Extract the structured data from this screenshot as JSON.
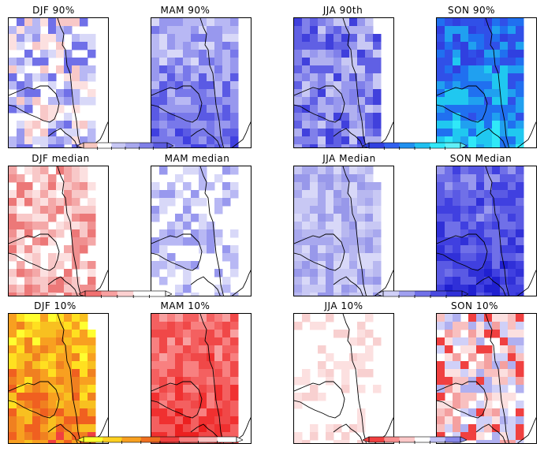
{
  "figure": {
    "panels": [
      {
        "title": "DJF 90%",
        "scheme": "djf90",
        "coast": "west"
      },
      {
        "title": "MAM 90%",
        "scheme": "mam90",
        "coast": "east"
      },
      {
        "title": "JJA 90th",
        "scheme": "jja90",
        "coast": "west"
      },
      {
        "title": "SON 90%",
        "scheme": "son90",
        "coast": "east"
      },
      {
        "title": "DJF median",
        "scheme": "djfmed",
        "coast": "west"
      },
      {
        "title": "MAM median",
        "scheme": "mammed",
        "coast": "east"
      },
      {
        "title": "JJA Median",
        "scheme": "jjamed",
        "coast": "west"
      },
      {
        "title": "SON Median",
        "scheme": "sonmed",
        "coast": "east"
      },
      {
        "title": "DJF 10%",
        "scheme": "djf10",
        "coast": "west"
      },
      {
        "title": "MAM 10%",
        "scheme": "mam10",
        "coast": "east"
      },
      {
        "title": "JJA 10%",
        "scheme": "jja10",
        "coast": "west"
      },
      {
        "title": "SON 10%",
        "scheme": "son10",
        "coast": "east"
      }
    ],
    "colorbars": [
      {
        "name": "row1-left",
        "colors": [
          "#f8c8c0",
          "#ffffff",
          "#c8c8f4",
          "#a8a8ee",
          "#8080e8",
          "#5a5ae0"
        ]
      },
      {
        "name": "row1-right",
        "colors": [
          "#3040e0",
          "#3060f0",
          "#2090f0",
          "#20c0f0",
          "#30e8f8",
          "#60f0f8"
        ]
      },
      {
        "name": "row2-left",
        "colors": [
          "#f07070",
          "#f8a0a0",
          "#fcd0d0",
          "#ffffff",
          "#ffffff"
        ]
      },
      {
        "name": "row2-right",
        "colors": [
          "#d0d0f8",
          "#a0a0f0",
          "#7070e8",
          "#4a4ae0",
          "#3030d8"
        ]
      },
      {
        "name": "row3-left",
        "colors": [
          "#ffff30",
          "#ffd020",
          "#f8a020",
          "#f07020",
          "#f04040",
          "#f88080",
          "#fcc0c0",
          "#ffffff"
        ]
      },
      {
        "name": "row3-right",
        "colors": [
          "#f04040",
          "#f89090",
          "#fcc8c8",
          "#ffffff",
          "#c0c0f4",
          "#8888ea"
        ]
      }
    ]
  }
}
